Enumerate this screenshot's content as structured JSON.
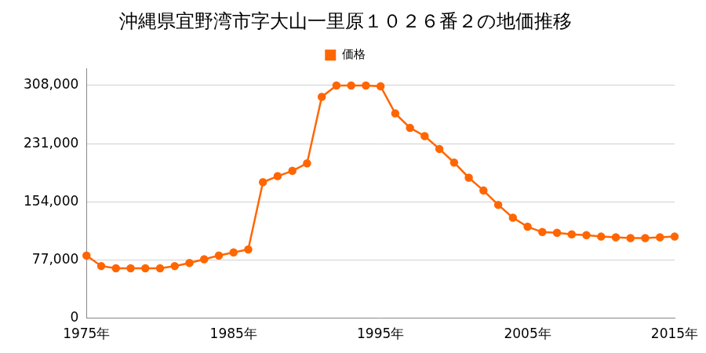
{
  "chart_data": {
    "type": "line",
    "title": "沖縄県宜野湾市字大山一里原１０２６番２の地価推移",
    "categories": [
      "1975年",
      null,
      null,
      null,
      null,
      null,
      null,
      null,
      null,
      null,
      "1985年",
      null,
      null,
      null,
      null,
      null,
      null,
      null,
      null,
      null,
      "1995年",
      null,
      null,
      null,
      null,
      null,
      null,
      null,
      null,
      null,
      "2005年",
      null,
      null,
      null,
      null,
      null,
      null,
      null,
      null,
      null,
      "2015年"
    ],
    "series": [
      {
        "name": "価格",
        "color": "#ff6600",
        "marker": "circle",
        "values": [
          83000,
          69000,
          66000,
          66000,
          66000,
          66000,
          69000,
          73000,
          78000,
          83000,
          87000,
          91000,
          180000,
          188000,
          195000,
          205000,
          293000,
          308000,
          308000,
          308000,
          307000,
          271000,
          252000,
          241000,
          224000,
          206000,
          186000,
          169000,
          150000,
          133000,
          121000,
          114000,
          113000,
          111000,
          110000,
          108000,
          107000,
          106000,
          106000,
          107000,
          108000
        ]
      }
    ],
    "ylim": [
      0,
      330000
    ],
    "yticks": [
      0,
      {
        "value": 77000,
        "label": "77,000"
      },
      {
        "value": 154000,
        "label": "154,000"
      },
      {
        "value": 231000,
        "label": "231,000"
      },
      {
        "value": 308000,
        "label": "308,000"
      }
    ],
    "grid": true,
    "legend": "top"
  }
}
